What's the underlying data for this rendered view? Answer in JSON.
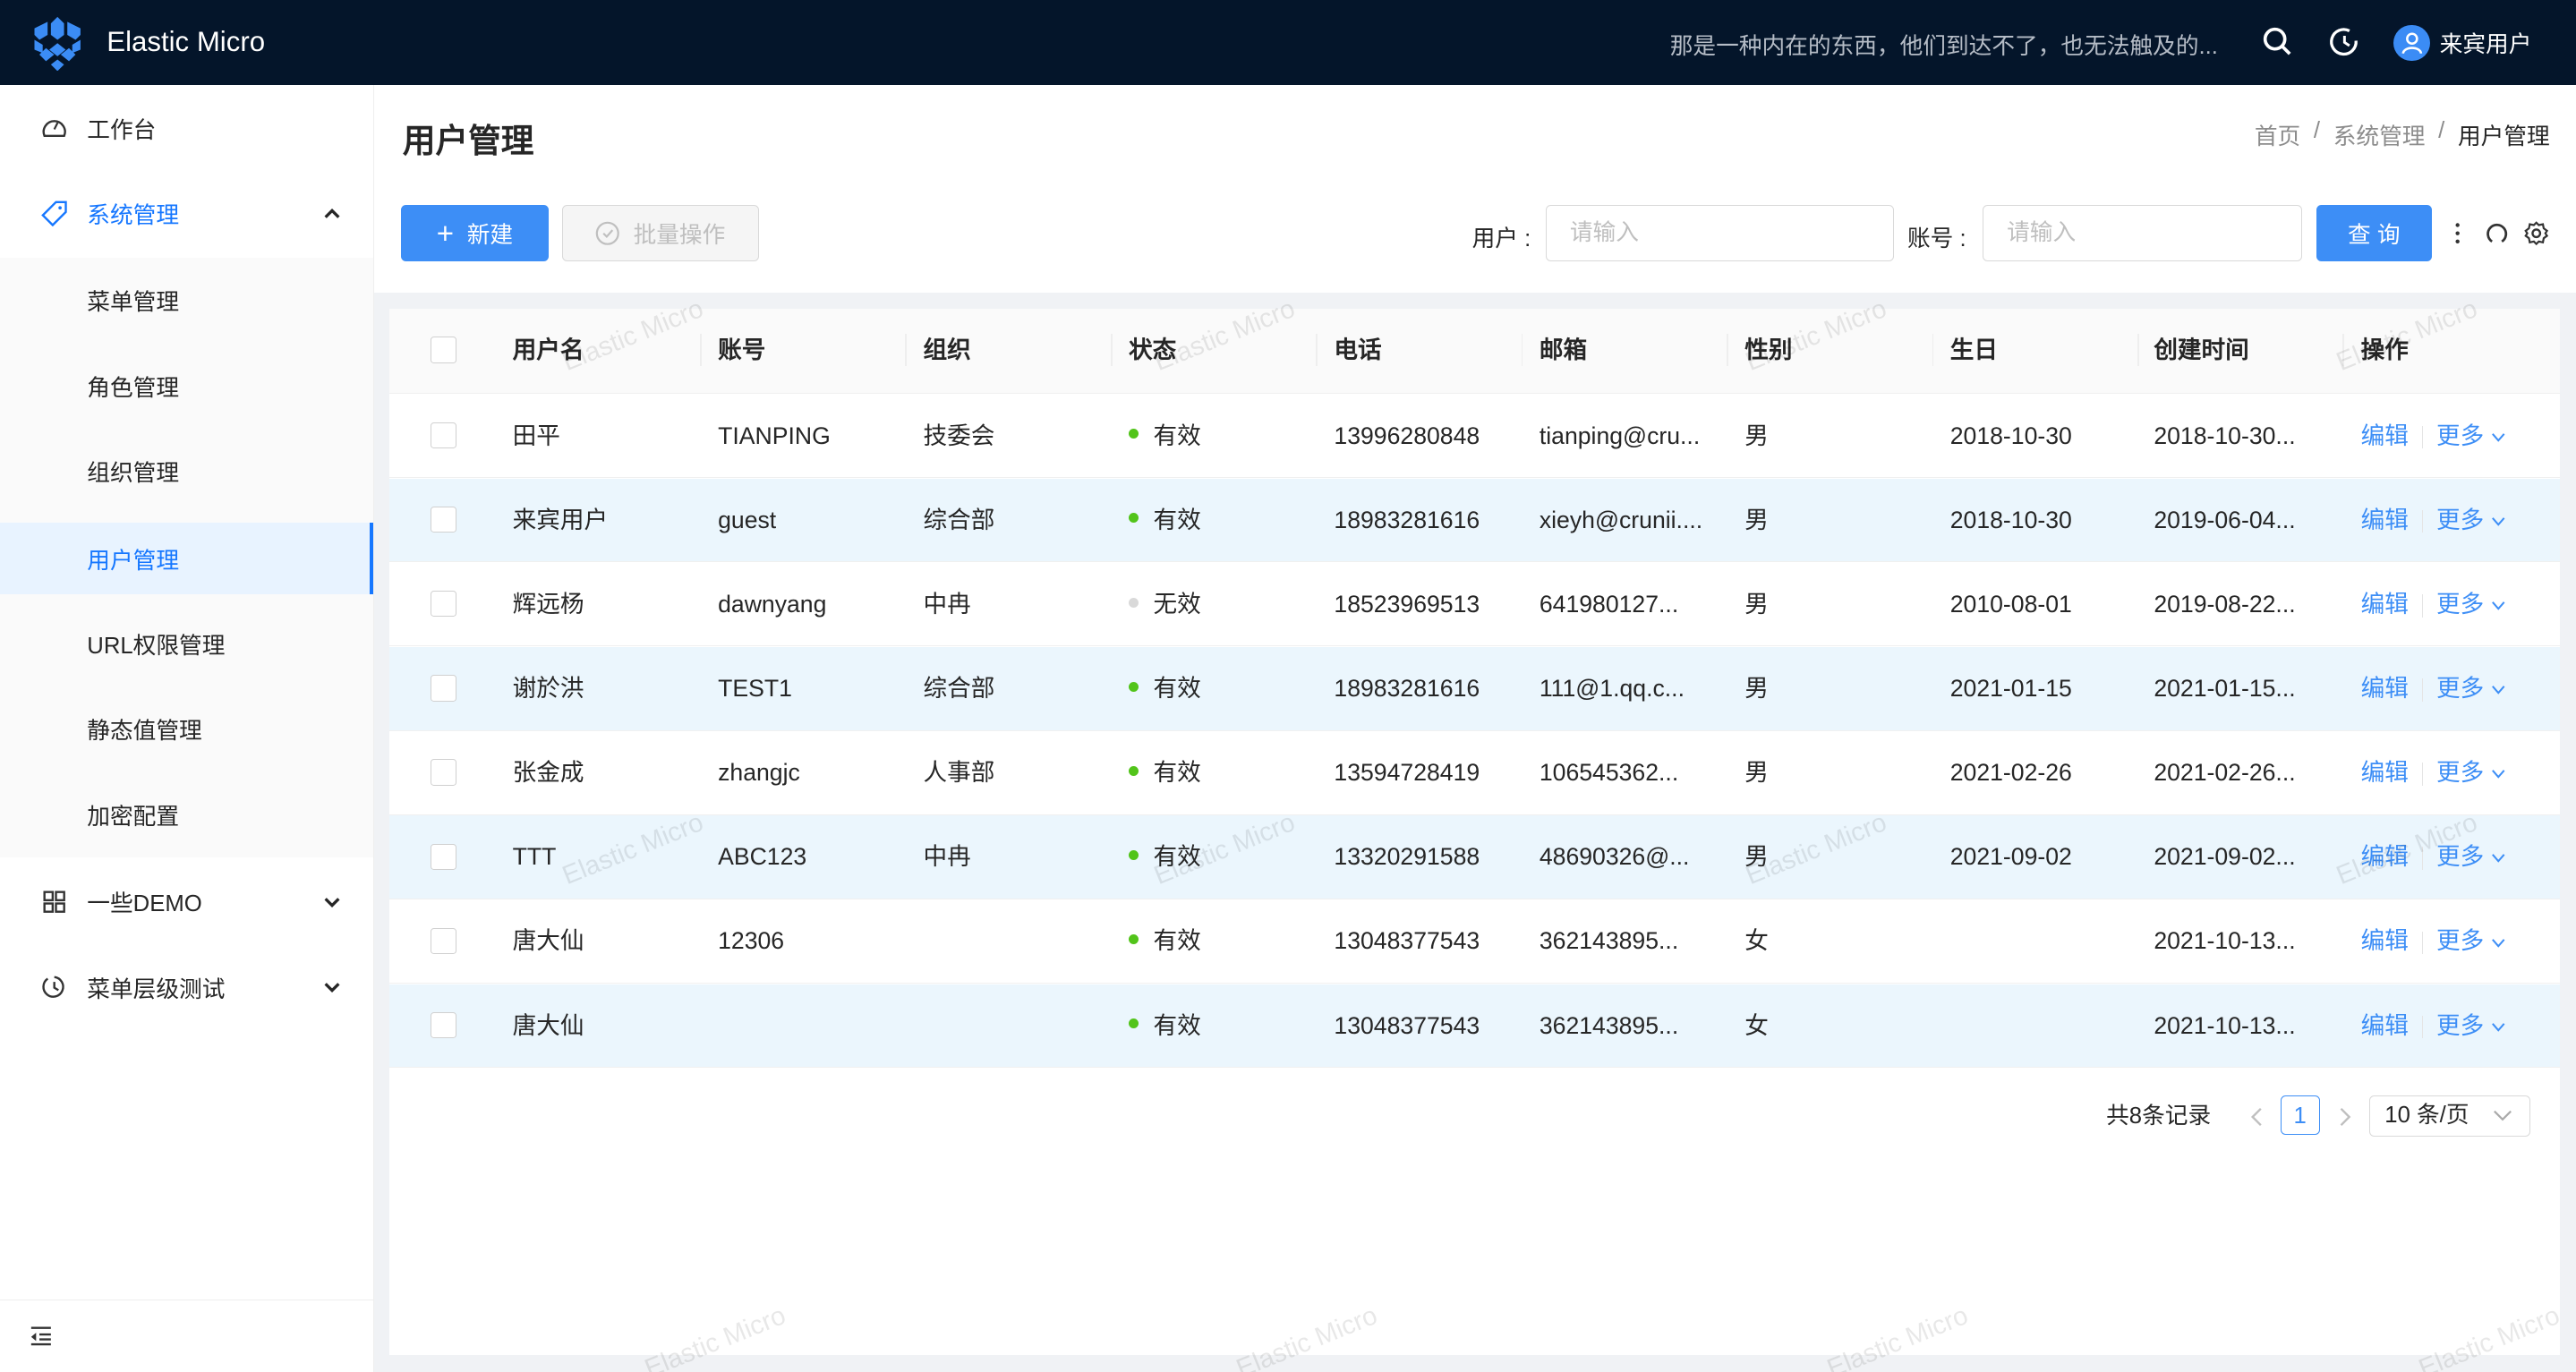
{
  "header": {
    "app_title": "Elastic Micro",
    "motto": "那是一种内在的东西，他们到达不了，也无法触及的...",
    "user_name": "来宾用户",
    "icons": [
      "search-icon",
      "history-icon",
      "user-icon"
    ],
    "bg_color": "#04152a"
  },
  "sidebar": {
    "items": [
      {
        "label": "工作台",
        "icon": "dashboard-icon"
      },
      {
        "label": "系统管理",
        "icon": "tag-icon",
        "expanded": true,
        "children": [
          {
            "label": "菜单管理"
          },
          {
            "label": "角色管理"
          },
          {
            "label": "组织管理"
          },
          {
            "label": "用户管理",
            "active": true
          },
          {
            "label": "URL权限管理"
          },
          {
            "label": "静态值管理"
          },
          {
            "label": "加密配置"
          }
        ]
      },
      {
        "label": "一些DEMO",
        "icon": "appstore-icon"
      },
      {
        "label": "菜单层级测试",
        "icon": "clock-icon"
      }
    ],
    "collapse_icon": "menu-fold-icon"
  },
  "page": {
    "title": "用户管理",
    "breadcrumb": [
      "首页",
      "系统管理",
      "用户管理"
    ]
  },
  "toolbar": {
    "new_label": "新建",
    "batch_label": "批量操作",
    "user_label": "用户 :",
    "user_placeholder": "请输入",
    "account_label": "账号 :",
    "account_placeholder": "请输入",
    "query_label": "查 询",
    "accent_color": "#3d8ef6"
  },
  "table": {
    "columns": [
      "用户名",
      "账号",
      "组织",
      "状态",
      "电话",
      "邮箱",
      "性别",
      "生日",
      "创建时间",
      "操作"
    ],
    "rows": [
      {
        "name": "田平",
        "account": "TIANPING",
        "org": "技委会",
        "status": "有效",
        "phone": "13996280848",
        "email": "tianping@cru...",
        "gender": "男",
        "birthday": "2018-10-30",
        "created": "2018-10-30..."
      },
      {
        "name": "来宾用户",
        "account": "guest",
        "org": "综合部",
        "status": "有效",
        "phone": "18983281616",
        "email": "xieyh@crunii....",
        "gender": "男",
        "birthday": "2018-10-30",
        "created": "2019-06-04..."
      },
      {
        "name": "辉远杨",
        "account": "dawnyang",
        "org": "中冉",
        "status": "无效",
        "phone": "18523969513",
        "email": "641980127...",
        "gender": "男",
        "birthday": "2010-08-01",
        "created": "2019-08-22..."
      },
      {
        "name": "谢於洪",
        "account": "TEST1",
        "org": "综合部",
        "status": "有效",
        "phone": "18983281616",
        "email": "111@1.qq.c...",
        "gender": "男",
        "birthday": "2021-01-15",
        "created": "2021-01-15..."
      },
      {
        "name": "张金成",
        "account": "zhangjc",
        "org": "人事部",
        "status": "有效",
        "phone": "13594728419",
        "email": "106545362...",
        "gender": "男",
        "birthday": "2021-02-26",
        "created": "2021-02-26..."
      },
      {
        "name": "TTT",
        "account": "ABC123",
        "org": "中冉",
        "status": "有效",
        "phone": "13320291588",
        "email": "48690326@...",
        "gender": "男",
        "birthday": "2021-09-02",
        "created": "2021-09-02..."
      },
      {
        "name": "唐大仙",
        "account": "12306",
        "org": "",
        "status": "有效",
        "phone": "13048377543",
        "email": "362143895...",
        "gender": "女",
        "birthday": "",
        "created": "2021-10-13..."
      },
      {
        "name": "唐大仙",
        "account": "",
        "org": "",
        "status": "有效",
        "phone": "13048377543",
        "email": "362143895...",
        "gender": "女",
        "birthday": "",
        "created": "2021-10-13..."
      }
    ],
    "edit_label": "编辑",
    "more_label": "更多",
    "status_colors": {
      "有效": "#52c41a",
      "无效": "#d9d9d9"
    },
    "stripe_color": "#ebf6fd"
  },
  "pagination": {
    "total_text": "共8条记录",
    "current_page": "1",
    "page_size": "10 条/页"
  },
  "watermark": "Elastic Micro"
}
